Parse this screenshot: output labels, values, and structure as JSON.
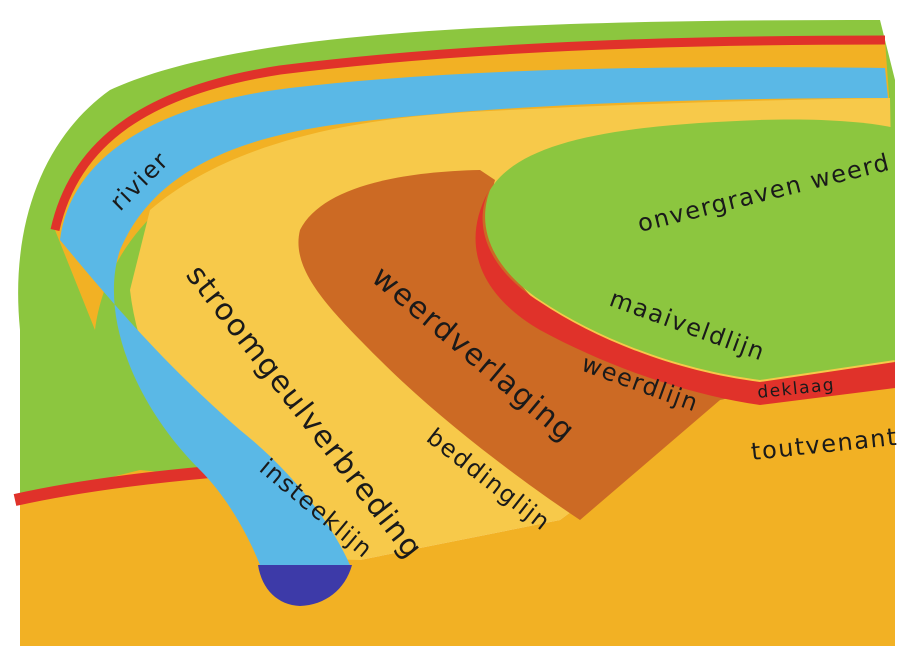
{
  "colors": {
    "background": "#ffffff",
    "grass": "#8cc63f",
    "grass_dark": "#6fa82c",
    "sand": "#f2b124",
    "sand_light": "#f7c94a",
    "clay_red": "#e0322a",
    "river_blue": "#5ab8e6",
    "river_dark": "#3d3aa8",
    "floodplain_brown": "#cc6a24",
    "ink": "#1a1a1a"
  },
  "labels": {
    "rivier": "rivier",
    "stroomgeulverbreding": "stroomgeulverbreding",
    "weerdverlaging": "weerdverlaging",
    "onvergraven_weerd": "onvergraven weerd",
    "maaiveldlijn": "maaiveldlijn",
    "weerdlijn": "weerdlijn",
    "deklaag": "deklaag",
    "toutvenant": "toutvenant",
    "beddinglijn": "beddinglijn",
    "insteeklijn": "insteeklijn"
  }
}
